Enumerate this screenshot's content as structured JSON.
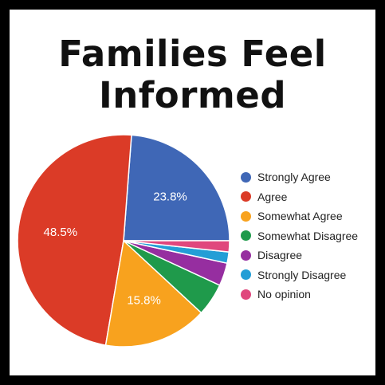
{
  "chart_data": {
    "type": "pie",
    "title_lines": [
      "Families Feel",
      "Informed"
    ],
    "series": [
      {
        "name": "Strongly Agree",
        "value": 23.8,
        "label": "23.8%",
        "color": "#3f67b6"
      },
      {
        "name": "Agree",
        "value": 48.5,
        "label": "48.5%",
        "color": "#db3b27"
      },
      {
        "name": "Somewhat Agree",
        "value": 15.8,
        "label": "15.8%",
        "color": "#f8a21e"
      },
      {
        "name": "Somewhat Disagree",
        "value": 5.0,
        "label": "",
        "color": "#1f9a4b"
      },
      {
        "name": "Disagree",
        "value": 3.5,
        "label": "",
        "color": "#962ea0"
      },
      {
        "name": "Strongly Disagree",
        "value": 1.7,
        "label": "",
        "color": "#239ed6"
      },
      {
        "name": "No opinion",
        "value": 1.7,
        "label": "",
        "color": "#e0477d"
      }
    ],
    "legend_position": "right",
    "start_angle": "3 o'clock, counterclockwise"
  }
}
